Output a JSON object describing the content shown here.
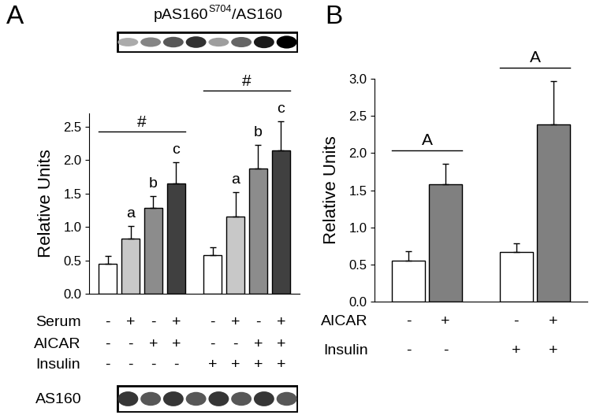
{
  "chart_data": [
    {
      "type": "bar",
      "panel_label": "A",
      "y_label": "Relative Units",
      "categories": [
        null,
        null,
        null,
        null,
        null,
        null,
        null,
        null
      ],
      "values": [
        0.45,
        0.83,
        1.28,
        1.65,
        0.58,
        1.15,
        1.88,
        2.15
      ],
      "errors": [
        0.12,
        0.18,
        0.18,
        0.32,
        0.11,
        0.37,
        0.35,
        0.43
      ],
      "colors": [
        "#ffffff",
        "#c8c8c8",
        "#8c8c8c",
        "#404040",
        "#ffffff",
        "#c8c8c8",
        "#8c8c8c",
        "#404040"
      ],
      "ylim": [
        0,
        2.7
      ],
      "yticks": [
        {
          "value": 0,
          "label": "0.0"
        },
        {
          "value": 0.5,
          "label": "0.5"
        },
        {
          "value": 1.0,
          "label": "1.0"
        },
        {
          "value": 1.5,
          "label": "1.5"
        },
        {
          "value": 2.0,
          "label": "2.0"
        },
        {
          "value": 2.5,
          "label": "2.5"
        }
      ],
      "conditions": [
        {
          "name": "Serum",
          "values": [
            "-",
            "+",
            "-",
            "+",
            "-",
            "+",
            "-",
            "+"
          ]
        },
        {
          "name": "AICAR",
          "values": [
            "-",
            "-",
            "+",
            "+",
            "-",
            "-",
            "+",
            "+"
          ]
        },
        {
          "name": "Insulin",
          "values": [
            "-",
            "-",
            "-",
            "-",
            "+",
            "+",
            "+",
            "+"
          ]
        }
      ],
      "bar_letters": [
        null,
        "a",
        "b",
        "c",
        null,
        "a",
        "b",
        "c"
      ],
      "group_marks": [
        {
          "text": "#",
          "bars": [
            0,
            3
          ]
        },
        {
          "text": "#",
          "bars": [
            4,
            7
          ]
        }
      ],
      "blot_top_label": [
        "pAS160",
        "S704",
        "/AS160"
      ],
      "blot_bottom_label": "AS160"
    },
    {
      "type": "bar",
      "panel_label": "B",
      "y_label": "Relative Units",
      "categories": [
        null,
        null,
        null,
        null
      ],
      "values": [
        0.55,
        1.58,
        0.67,
        2.39
      ],
      "errors": [
        0.13,
        0.28,
        0.11,
        0.58
      ],
      "colors": [
        "#ffffff",
        "#808080",
        "#ffffff",
        "#808080"
      ],
      "ylim": [
        0,
        3.0
      ],
      "yticks": [
        {
          "value": 0,
          "label": "0.0"
        },
        {
          "value": 0.5,
          "label": "0.5"
        },
        {
          "value": 1.0,
          "label": "1.0"
        },
        {
          "value": 1.5,
          "label": "1.5"
        },
        {
          "value": 2.0,
          "label": "2.0"
        },
        {
          "value": 2.5,
          "label": "2.5"
        },
        {
          "value": 3.0,
          "label": "3.0"
        }
      ],
      "conditions": [
        {
          "name": "AICAR",
          "values": [
            "-",
            "+",
            "-",
            "+"
          ]
        },
        {
          "name": "Insulin",
          "values": [
            "-",
            "-",
            "+",
            "+"
          ]
        }
      ],
      "group_marks": [
        {
          "text": "A",
          "bars": [
            0,
            1
          ]
        },
        {
          "text": "A",
          "bars": [
            2,
            3
          ]
        }
      ]
    }
  ]
}
